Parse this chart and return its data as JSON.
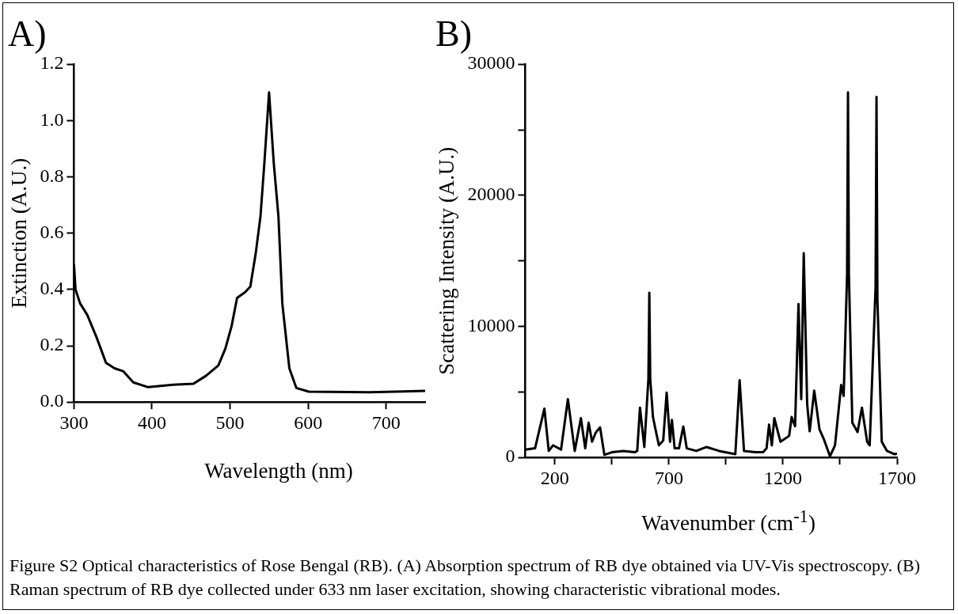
{
  "chart_data": [
    {
      "type": "line",
      "title": "A)",
      "xlabel": "Wavelength (nm)",
      "ylabel": "Extinction (A.U.)",
      "xlim": [
        300,
        750
      ],
      "xticks": [
        300,
        400,
        500,
        600,
        700
      ],
      "ylim": [
        0,
        1.2
      ],
      "yticks": [
        {
          "value": 0,
          "label": "0.0"
        },
        0.2,
        0.4,
        0.6,
        0.8,
        {
          "value": 1,
          "label": "1.0"
        },
        1.2
      ],
      "grid": false,
      "legend": false,
      "marker": "none",
      "line_style": "solid",
      "series": [
        {
          "color": "#000000",
          "x": [
            300,
            302,
            308,
            317,
            329,
            341,
            352,
            363,
            376,
            395,
            427,
            453,
            469,
            485,
            494,
            502,
            509,
            519,
            526,
            533,
            539,
            544,
            550,
            556,
            562,
            567,
            576,
            585,
            601,
            678,
            750
          ],
          "values": [
            0.49,
            0.4,
            0.35,
            0.31,
            0.23,
            0.14,
            0.12,
            0.11,
            0.07,
            0.053,
            0.062,
            0.065,
            0.093,
            0.13,
            0.19,
            0.27,
            0.37,
            0.39,
            0.41,
            0.53,
            0.66,
            0.85,
            1.1,
            0.85,
            0.66,
            0.35,
            0.12,
            0.05,
            0.037,
            0.035,
            0.04
          ]
        }
      ]
    },
    {
      "type": "line",
      "title": "B)",
      "xlabel": "Wavenumber (cm$^{-1}$)",
      "ylabel": "Scattering Intensity (A.U.)",
      "xlim": [
        70,
        1700
      ],
      "xticks": [
        200,
        {
          "value": 450,
          "label": null
        },
        700,
        {
          "value": 950,
          "label": null
        },
        1200,
        {
          "value": 1450,
          "label": null
        },
        1700
      ],
      "ylim": [
        0,
        30000
      ],
      "yticks": [
        0,
        {
          "value": 5000,
          "label": null
        },
        10000,
        {
          "value": 15000,
          "label": null
        },
        20000,
        {
          "value": 25000,
          "label": null
        },
        30000
      ],
      "grid": false,
      "legend": false,
      "marker": "none",
      "line_style": "solid",
      "annotations": [
        "Figure S2 Optical characteristics of Rose Bengal (RB). (A) Absorption spectrum of RB dye obtained via UV-Vis spectroscopy. (B) Raman spectrum of RB dye collected under 633 nm laser excitation, showing characteristic vibrational modes."
      ],
      "series": [
        {
          "color": "#000000",
          "x": [
            70,
            113,
            154,
            173,
            192,
            227,
            257,
            287,
            314,
            333,
            348,
            363,
            379,
            398,
            417,
            450,
            500,
            550,
            561,
            573,
            592,
            610,
            614,
            618,
            630,
            641,
            656,
            675,
            690,
            705,
            713,
            725,
            744,
            763,
            778,
            820,
            865,
            920,
            991,
            1010,
            1029,
            1080,
            1113,
            1128,
            1139,
            1151,
            1162,
            1189,
            1227,
            1238,
            1253,
            1268,
            1280,
            1291,
            1306,
            1317,
            1337,
            1360,
            1379,
            1406,
            1428,
            1455,
            1466,
            1481,
            1485,
            1489,
            1504,
            1527,
            1546,
            1569,
            1580,
            1606,
            1610,
            1614,
            1633,
            1656,
            1690,
            1700
          ],
          "values": [
            600,
            700,
            3730,
            500,
            930,
            600,
            4450,
            500,
            3000,
            700,
            2650,
            1200,
            1900,
            2300,
            200,
            400,
            500,
            400,
            500,
            3800,
            800,
            6000,
            12570,
            6000,
            3090,
            2150,
            930,
            1300,
            4950,
            1200,
            2870,
            700,
            700,
            2370,
            700,
            500,
            800,
            500,
            250,
            5890,
            500,
            400,
            400,
            700,
            2510,
            930,
            3000,
            1200,
            1650,
            3090,
            2390,
            11700,
            4450,
            15580,
            4100,
            2000,
            5100,
            2150,
            1400,
            100,
            930,
            5530,
            4700,
            14000,
            27860,
            14000,
            2650,
            1940,
            3800,
            1200,
            930,
            13000,
            27500,
            12000,
            1200,
            500,
            250,
            300
          ]
        }
      ]
    }
  ]
}
